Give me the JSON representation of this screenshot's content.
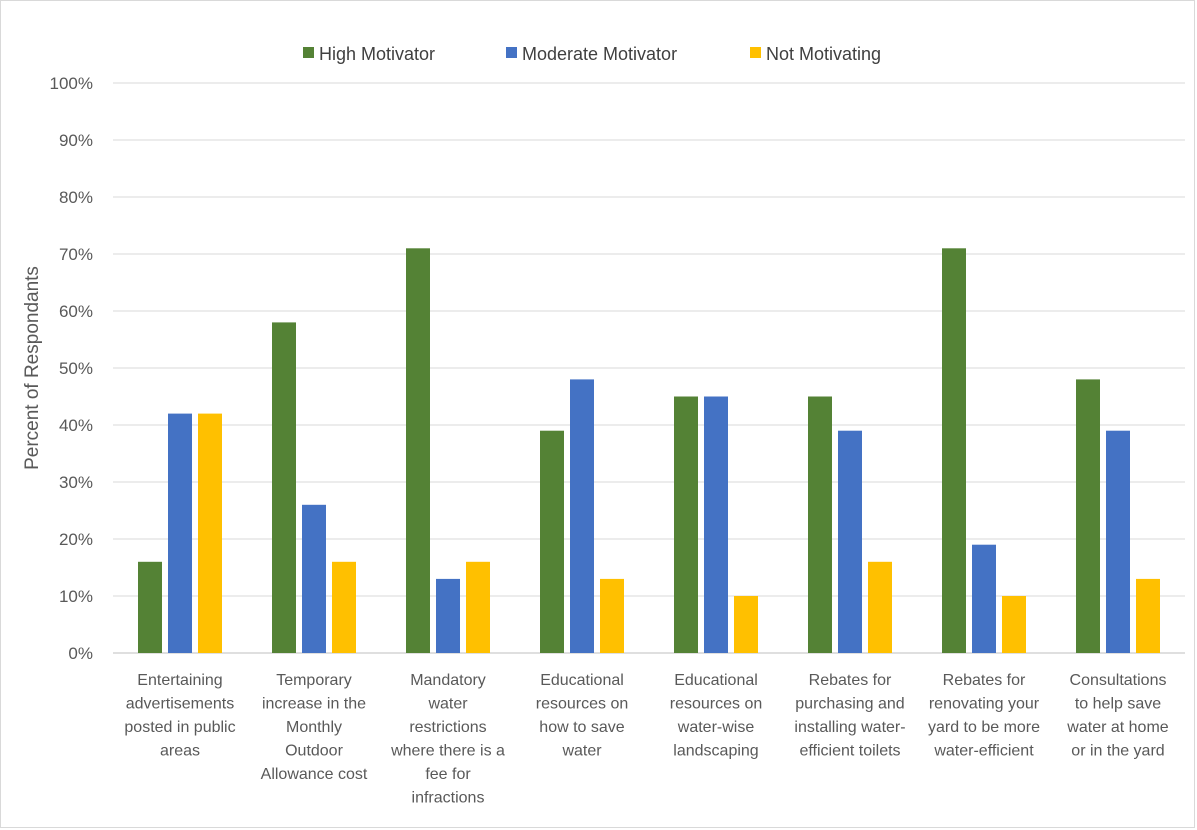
{
  "chart_data": {
    "type": "bar",
    "title": "",
    "xlabel": "",
    "ylabel": "Percent of Respondants",
    "ylim": [
      0,
      100
    ],
    "yticks": [
      "0%",
      "10%",
      "20%",
      "30%",
      "40%",
      "50%",
      "60%",
      "70%",
      "80%",
      "90%",
      "100%"
    ],
    "grid": true,
    "legend_position": "top",
    "categories": [
      [
        "Entertaining",
        "advertisements",
        "posted in public",
        "areas"
      ],
      [
        "Temporary",
        "increase in the",
        "Monthly",
        "Outdoor",
        "Allowance cost"
      ],
      [
        "Mandatory",
        "water",
        "restrictions",
        "where there is a",
        "fee for",
        "infractions"
      ],
      [
        "Educational",
        "resources on",
        "how to save",
        "water"
      ],
      [
        "Educational",
        "resources on",
        "water-wise",
        "landscaping"
      ],
      [
        "Rebates for",
        "purchasing and",
        "installing water-",
        "efficient toilets"
      ],
      [
        "Rebates for",
        "renovating your",
        "yard to be more",
        "water-efficient"
      ],
      [
        "Consultations",
        "to help save",
        "water at home",
        "or in the yard"
      ]
    ],
    "series": [
      {
        "name": "High Motivator",
        "color": "#548235",
        "values": [
          16,
          58,
          71,
          39,
          45,
          45,
          71,
          48
        ]
      },
      {
        "name": "Moderate Motivator",
        "color": "#4472c4",
        "values": [
          42,
          26,
          13,
          48,
          45,
          39,
          19,
          39
        ]
      },
      {
        "name": "Not Motivating",
        "color": "#ffc000",
        "values": [
          42,
          16,
          16,
          13,
          10,
          16,
          10,
          13
        ]
      }
    ]
  }
}
